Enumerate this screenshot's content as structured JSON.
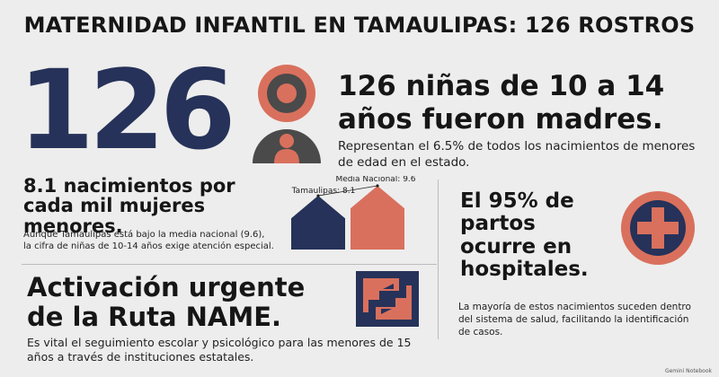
{
  "title": "MATERNIDAD INFANTIL EN TAMAULIPAS: 126 ROSTROS",
  "hero": {
    "number": "126",
    "headline_line1": "126 niñas de 10 a 14",
    "headline_line2": "años fueron madres.",
    "subtext": "Representan el 6.5% de todos los nacimientos de menores de edad en el estado."
  },
  "rate": {
    "headline_line1": "8.1 nacimientos por",
    "headline_line2": "cada mil mujeres",
    "headline_line3": "menores.",
    "body_line1": "Aunque Tamaulipas está bajo la media nacional (9.6),",
    "body_line2": "la cifra de niñas de 10-14 años exige atención especial."
  },
  "chart_data": {
    "type": "bar",
    "categories": [
      "Tamaulipas",
      "Media Nacional"
    ],
    "values": [
      8.1,
      9.6
    ],
    "labels": [
      "Tamaulipas: 8.1",
      "Media Nacional: 9.6"
    ],
    "ylim": [
      0,
      10
    ],
    "colors": [
      "#263259",
      "#d9705d"
    ]
  },
  "hospital": {
    "headline_line1": "El 95% de",
    "headline_line2": "partos",
    "headline_line3": "ocurre en",
    "headline_line4": "hospitales.",
    "body": "La mayoría de estos nacimientos suceden dentro del sistema de salud, facilitando la identificación de casos."
  },
  "route": {
    "headline_line1": "Activación urgente",
    "headline_line2": "de la Ruta NAME.",
    "body": "Es vital el seguimiento escolar y psicológico para las menores de 15 años a través de instituciones estatales."
  },
  "watermark": "Gemini Notebook",
  "colors": {
    "navy": "#263259",
    "coral": "#d9705d",
    "charcoal": "#4a4a4a",
    "background": "#ededed"
  },
  "icons": [
    "person-icon",
    "medical-cross-icon",
    "route-arrows-icon"
  ]
}
